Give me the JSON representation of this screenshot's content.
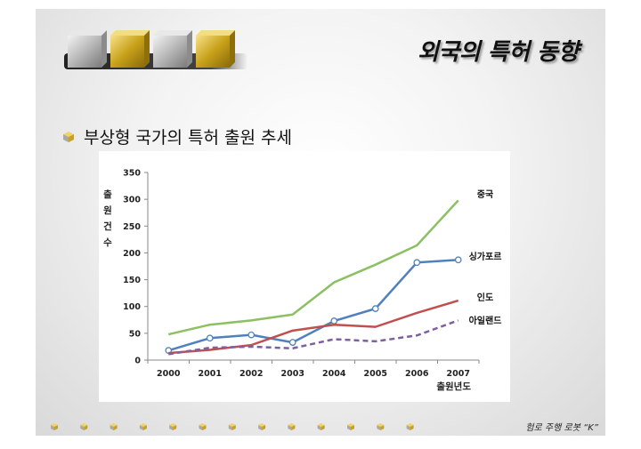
{
  "slide": {
    "title": "외국의 특허 동향",
    "bullet": "부상형 국가의 특허 출원 추세",
    "footer": "험로 주행 로봇 “K”"
  },
  "icons": {
    "bullet": "cube-bullet-icon",
    "decoration": "cube-row-decoration",
    "footer": "footer-cube-dots"
  },
  "colors": {
    "china": "#8CC063",
    "singapore": "#4F81BD",
    "india": "#C0504D",
    "ireland": "#7E5FA0"
  },
  "chart_data": {
    "type": "line",
    "title": "",
    "ylabel": "출원건수",
    "xlabel": "출원년도",
    "x": [
      "2000",
      "2001",
      "2002",
      "2003",
      "2004",
      "2005",
      "2006",
      "2007"
    ],
    "ylim": [
      0,
      350
    ],
    "yticks": [
      "0",
      "50",
      "100",
      "150",
      "200",
      "250",
      "300",
      "350"
    ],
    "grid": false,
    "legend": "right, labels at line ends",
    "series": [
      {
        "name": "중국",
        "values": [
          48,
          66,
          74,
          85,
          145,
          178,
          214,
          298
        ],
        "color": "#8CC063",
        "style": "solid",
        "markers": false
      },
      {
        "name": "싱가포르",
        "values": [
          18,
          41,
          47,
          33,
          73,
          96,
          182,
          187
        ],
        "color": "#4F81BD",
        "style": "solid",
        "markers": true
      },
      {
        "name": "인도",
        "values": [
          13,
          19,
          28,
          55,
          66,
          62,
          88,
          111
        ],
        "color": "#C0504D",
        "style": "solid",
        "markers": false
      },
      {
        "name": "아일랜드",
        "values": [
          11,
          23,
          25,
          22,
          39,
          35,
          46,
          74
        ],
        "color": "#7E5FA0",
        "style": "dashed",
        "markers": false
      }
    ]
  }
}
